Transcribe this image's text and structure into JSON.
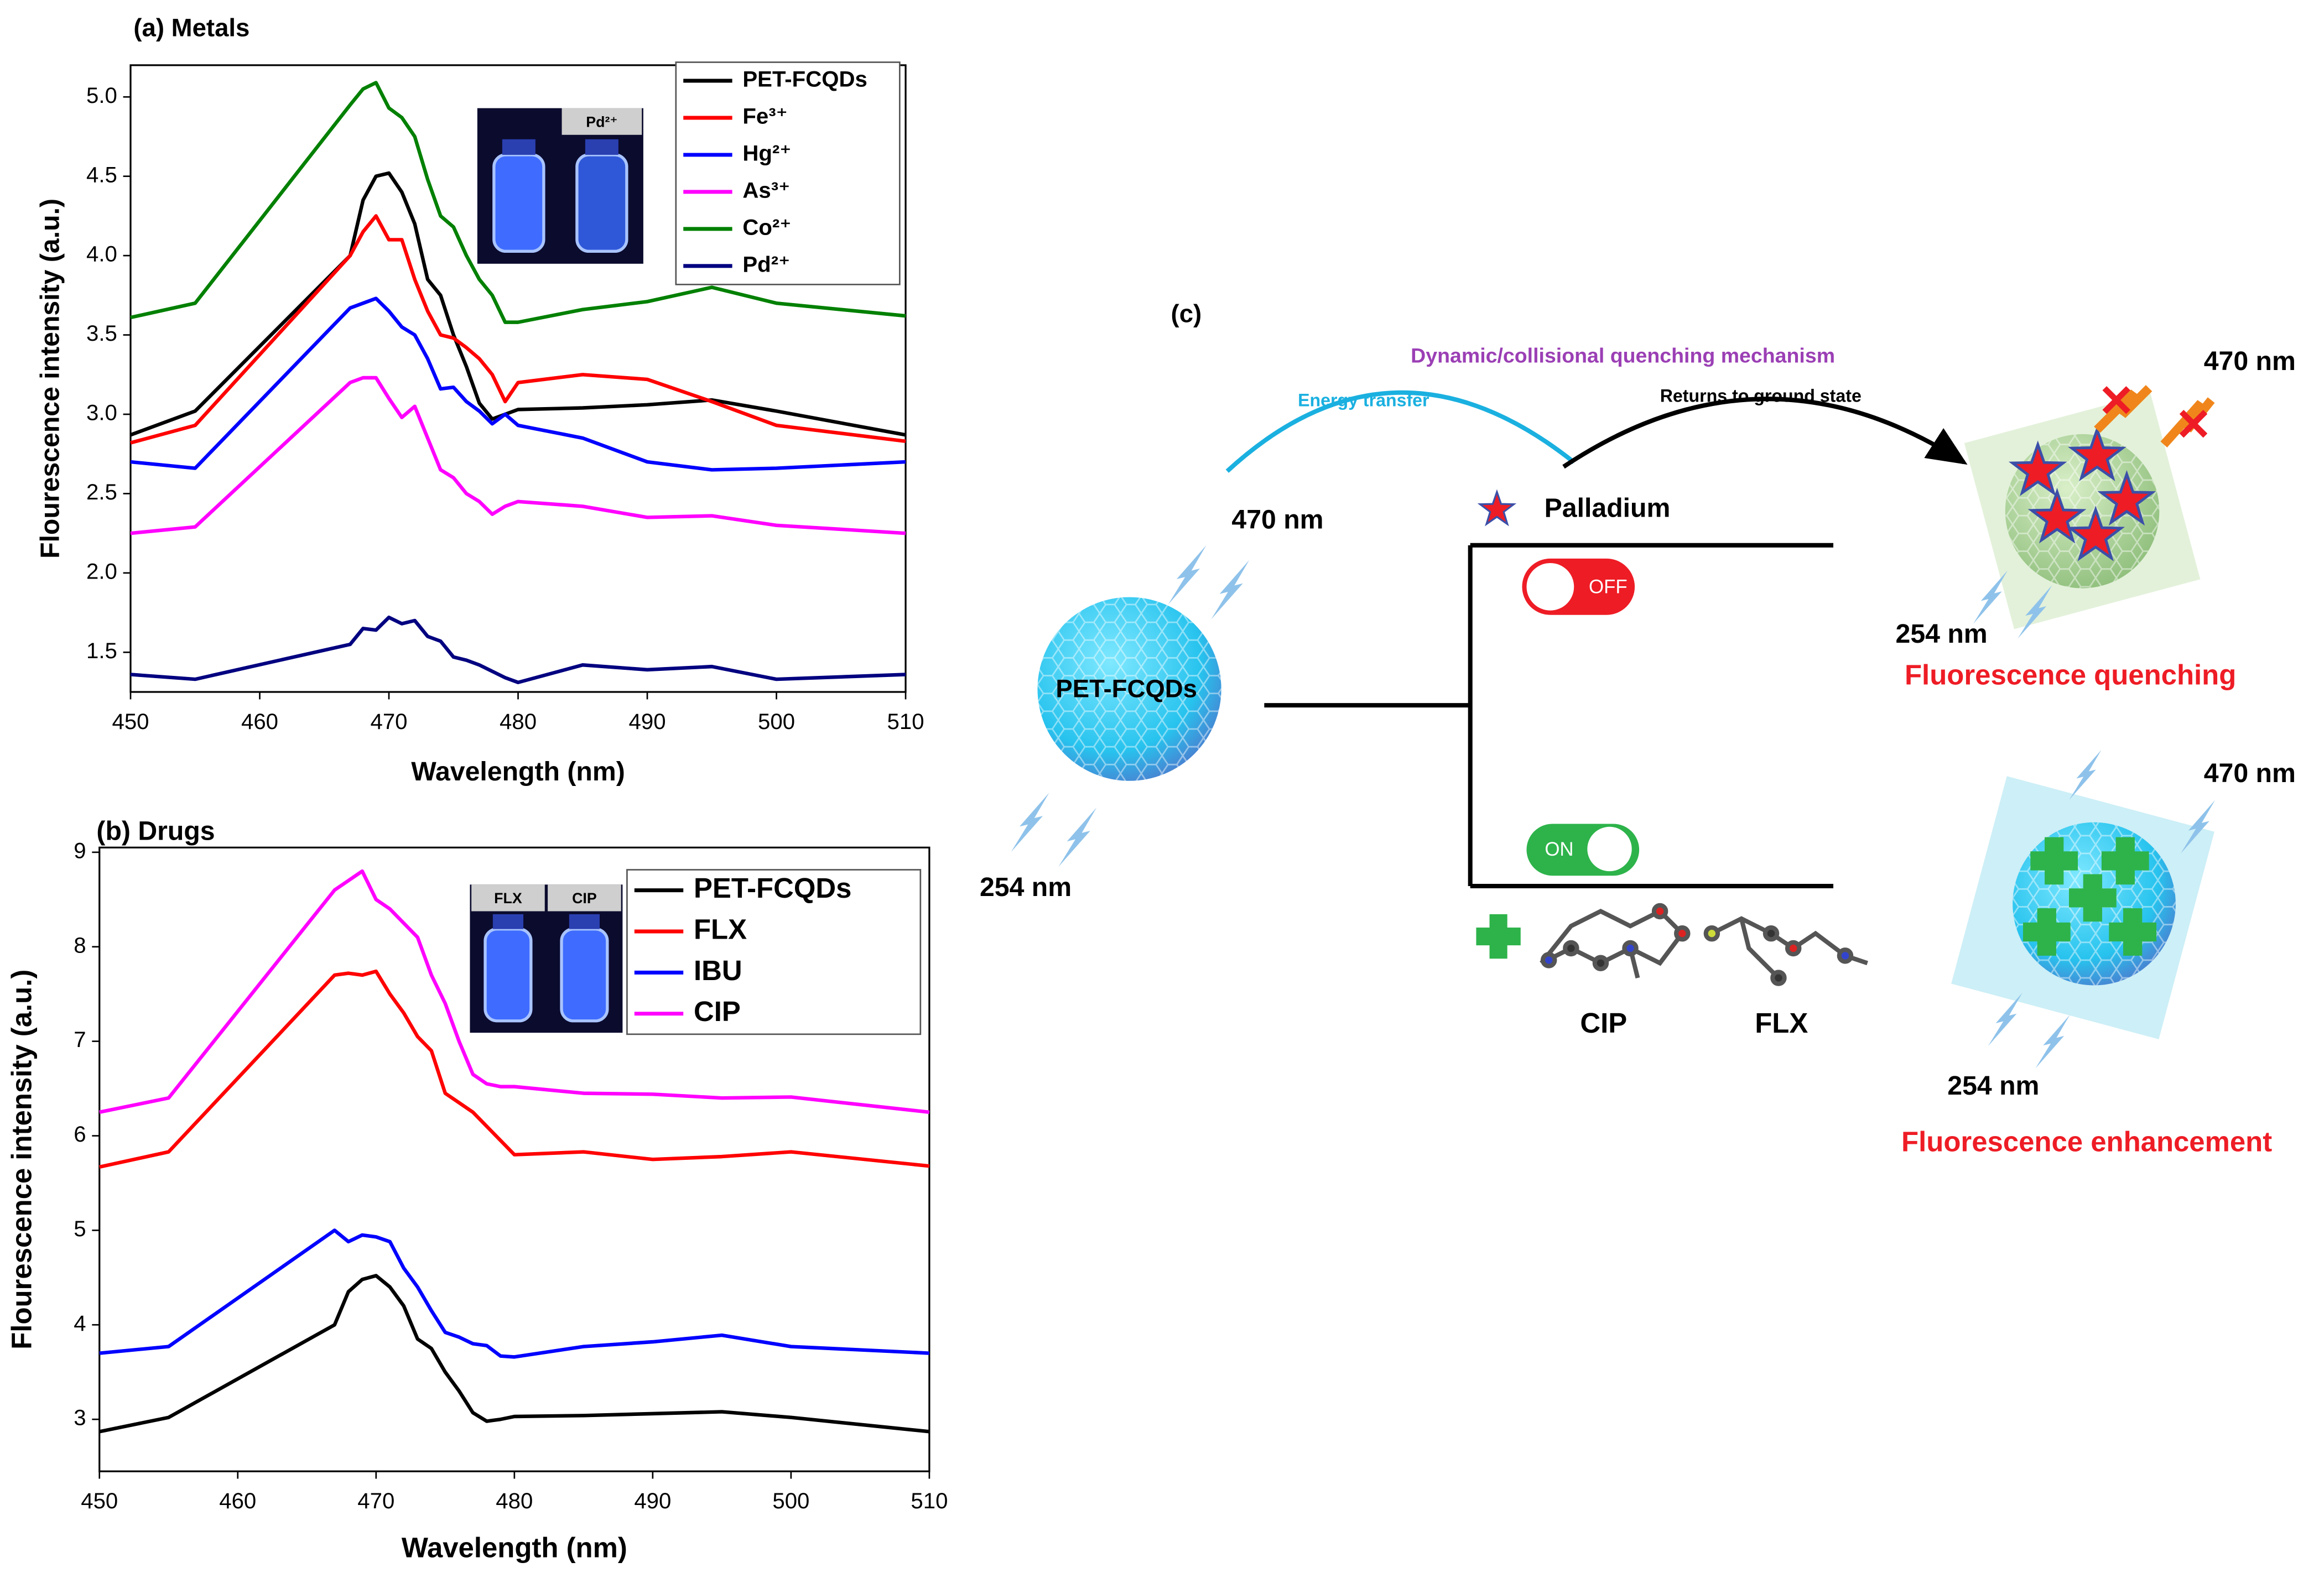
{
  "chart_data": [
    {
      "type": "line",
      "title": "(a) Metals",
      "xlabel": "Wavelength (nm)",
      "ylabel": "Flourescence intensity (a.u.)",
      "x": [
        450,
        455,
        467,
        468,
        469,
        470,
        471,
        472,
        473,
        474,
        475,
        476,
        477,
        478,
        479,
        480,
        485,
        490,
        495,
        500,
        510
      ],
      "xlim": [
        450,
        510
      ],
      "xticks": [
        450,
        460,
        470,
        480,
        490,
        500,
        510
      ],
      "ylim": [
        1.25,
        5.2
      ],
      "yticks": [
        1.5,
        {
          "value": 2,
          "label": "2.0"
        },
        2.5,
        {
          "value": 3,
          "label": "3.0"
        },
        3.5,
        {
          "value": 4,
          "label": "4.0"
        },
        4.5,
        {
          "value": 5,
          "label": "5.0"
        }
      ],
      "legend": "upper right",
      "inset_labels": [
        "Pd²⁺"
      ],
      "series": [
        {
          "name": "PET-FCQDs",
          "color": "#000000",
          "values": [
            2.87,
            3.02,
            4.0,
            4.35,
            4.5,
            4.52,
            4.4,
            4.2,
            3.85,
            3.75,
            3.5,
            3.3,
            3.07,
            2.97,
            3.0,
            3.03,
            3.04,
            3.06,
            3.09,
            3.02,
            2.87
          ]
        },
        {
          "name": "Fe³⁺",
          "color": "#ff0000",
          "values": [
            2.82,
            2.93,
            4.0,
            4.15,
            4.25,
            4.1,
            4.1,
            3.85,
            3.65,
            3.5,
            3.48,
            3.42,
            3.35,
            3.25,
            3.08,
            3.2,
            3.25,
            3.22,
            3.08,
            2.93,
            2.83
          ]
        },
        {
          "name": "Hg²⁺",
          "color": "#0000ff",
          "values": [
            2.7,
            2.66,
            3.67,
            3.7,
            3.73,
            3.65,
            3.55,
            3.5,
            3.35,
            3.16,
            3.17,
            3.08,
            3.02,
            2.94,
            3.0,
            2.93,
            2.85,
            2.7,
            2.65,
            2.66,
            2.7
          ]
        },
        {
          "name": "As³⁺",
          "color": "#ff00ff",
          "values": [
            2.25,
            2.29,
            3.2,
            3.23,
            3.23,
            3.1,
            2.98,
            3.05,
            2.85,
            2.65,
            2.6,
            2.5,
            2.45,
            2.37,
            2.42,
            2.45,
            2.42,
            2.35,
            2.36,
            2.3,
            2.25
          ]
        },
        {
          "name": "Co²⁺",
          "color": "#008000",
          "values": [
            3.61,
            3.7,
            4.95,
            5.05,
            5.09,
            4.93,
            4.87,
            4.75,
            4.48,
            4.25,
            4.18,
            4.0,
            3.85,
            3.75,
            3.58,
            3.58,
            3.66,
            3.71,
            3.8,
            3.7,
            3.62
          ]
        },
        {
          "name": "Pd²⁺",
          "color": "#000080",
          "values": [
            1.36,
            1.33,
            1.55,
            1.65,
            1.64,
            1.72,
            1.68,
            1.7,
            1.6,
            1.57,
            1.47,
            1.45,
            1.42,
            1.38,
            1.34,
            1.31,
            1.42,
            1.39,
            1.41,
            1.33,
            1.36
          ]
        }
      ]
    },
    {
      "type": "line",
      "title": "(b) Drugs",
      "xlabel": "Wavelength (nm)",
      "ylabel": "Flourescence intensity (a.u.)",
      "x": [
        450,
        455,
        467,
        468,
        469,
        470,
        471,
        472,
        473,
        474,
        475,
        476,
        477,
        478,
        479,
        480,
        485,
        490,
        495,
        500,
        510
      ],
      "xlim": [
        450,
        510
      ],
      "xticks": [
        450,
        460,
        470,
        480,
        490,
        500,
        510
      ],
      "ylim": [
        2.45,
        9.05
      ],
      "yticks": [
        3,
        4,
        5,
        6,
        7,
        8,
        9
      ],
      "legend": "upper right",
      "inset_labels": [
        "FLX",
        "CIP"
      ],
      "series": [
        {
          "name": "PET-FCQDs",
          "color": "#000000",
          "values": [
            2.87,
            3.02,
            4.0,
            4.35,
            4.48,
            4.52,
            4.4,
            4.2,
            3.85,
            3.75,
            3.5,
            3.3,
            3.07,
            2.98,
            3.0,
            3.03,
            3.04,
            3.06,
            3.08,
            3.02,
            2.87
          ]
        },
        {
          "name": "FLX",
          "color": "#ff0000",
          "values": [
            5.67,
            5.83,
            7.7,
            7.72,
            7.7,
            7.74,
            7.5,
            7.3,
            7.05,
            6.9,
            6.45,
            6.35,
            6.25,
            6.1,
            5.95,
            5.8,
            5.83,
            5.75,
            5.78,
            5.83,
            5.68
          ]
        },
        {
          "name": "IBU",
          "color": "#0000ff",
          "values": [
            3.7,
            3.77,
            5.0,
            4.88,
            4.95,
            4.93,
            4.88,
            4.6,
            4.4,
            4.15,
            3.92,
            3.87,
            3.8,
            3.78,
            3.67,
            3.66,
            3.77,
            3.82,
            3.89,
            3.77,
            3.7
          ]
        },
        {
          "name": "CIP",
          "color": "#ff00ff",
          "values": [
            6.25,
            6.4,
            8.6,
            8.7,
            8.8,
            8.5,
            8.4,
            8.25,
            8.1,
            7.7,
            7.4,
            7.0,
            6.65,
            6.55,
            6.52,
            6.52,
            6.45,
            6.44,
            6.4,
            6.41,
            6.25
          ]
        }
      ]
    }
  ],
  "diagram": {
    "label": "(c)",
    "mechanism": "Dynamic/collisional quenching mechanism",
    "energy_transfer": "Energy transfer",
    "ground_state": "Returns to ground state",
    "probe": {
      "label": "PET-FCQDs",
      "emission": "470 nm",
      "excitation": "254 nm"
    },
    "analyte": "Palladium",
    "switch_off": "OFF",
    "switch_on": "ON",
    "drugs": [
      "CIP",
      "FLX"
    ],
    "quenching": {
      "emission": "470 nm",
      "excitation": "254 nm",
      "result": "Fluorescence quenching"
    },
    "enhancement": {
      "emission": "470 nm",
      "excitation": "254 nm",
      "result": "Fluorescence enhancement"
    }
  }
}
